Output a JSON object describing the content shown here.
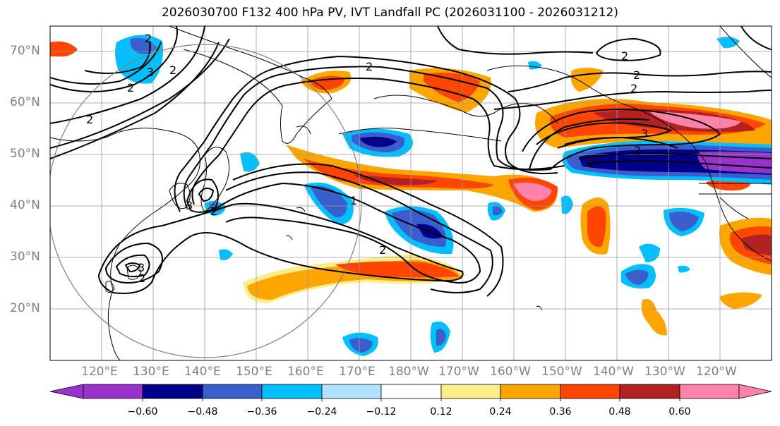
{
  "title": "2026030700 F132 400 hPa PV, IVT Landfall PC (2026031100 - 2026031212)",
  "lat_labels": [
    "70°N",
    "60°N",
    "50°N",
    "40°N",
    "30°N",
    "20°N"
  ],
  "lon_labels": [
    "120°E",
    "130°E",
    "140°E",
    "150°E",
    "160°E",
    "170°E",
    "180°W",
    "170°W",
    "160°W",
    "150°W",
    "140°W",
    "130°W",
    "120°W"
  ],
  "contour_labels": [
    "2",
    "3",
    "2",
    "2",
    "2",
    "2",
    "3",
    "3",
    "2",
    "2",
    "1",
    "2",
    "2",
    "2",
    "2",
    "2",
    "3",
    "2"
  ],
  "colorbar": {
    "ticks": [
      "−0.60",
      "−0.48",
      "−0.36",
      "−0.24",
      "−0.12",
      "0.12",
      "0.24",
      "0.36",
      "0.48",
      "0.60"
    ],
    "colors": [
      "#9932cc",
      "#00008b",
      "#3a5fcd",
      "#00bfff",
      "#b0e2ff",
      "#ffffff",
      "#ffec8b",
      "#ffa500",
      "#ff4500",
      "#b22222",
      "#ff82ab"
    ]
  },
  "chart_data": {
    "type": "map",
    "title": "2026030700 F132 400 hPa PV, IVT Landfall PC (2026031100 - 2026031212)",
    "projection": "PlateCarree",
    "lon_range": [
      110,
      250
    ],
    "lat_range": [
      10,
      75
    ],
    "shaded_field": "IVT Landfall PC",
    "contour_field": "400 hPa PV",
    "contour_levels": [
      1,
      2,
      3
    ],
    "colorbar_levels": [
      -0.6,
      -0.48,
      -0.36,
      -0.24,
      -0.12,
      0.12,
      0.24,
      0.36,
      0.48,
      0.6
    ]
  }
}
